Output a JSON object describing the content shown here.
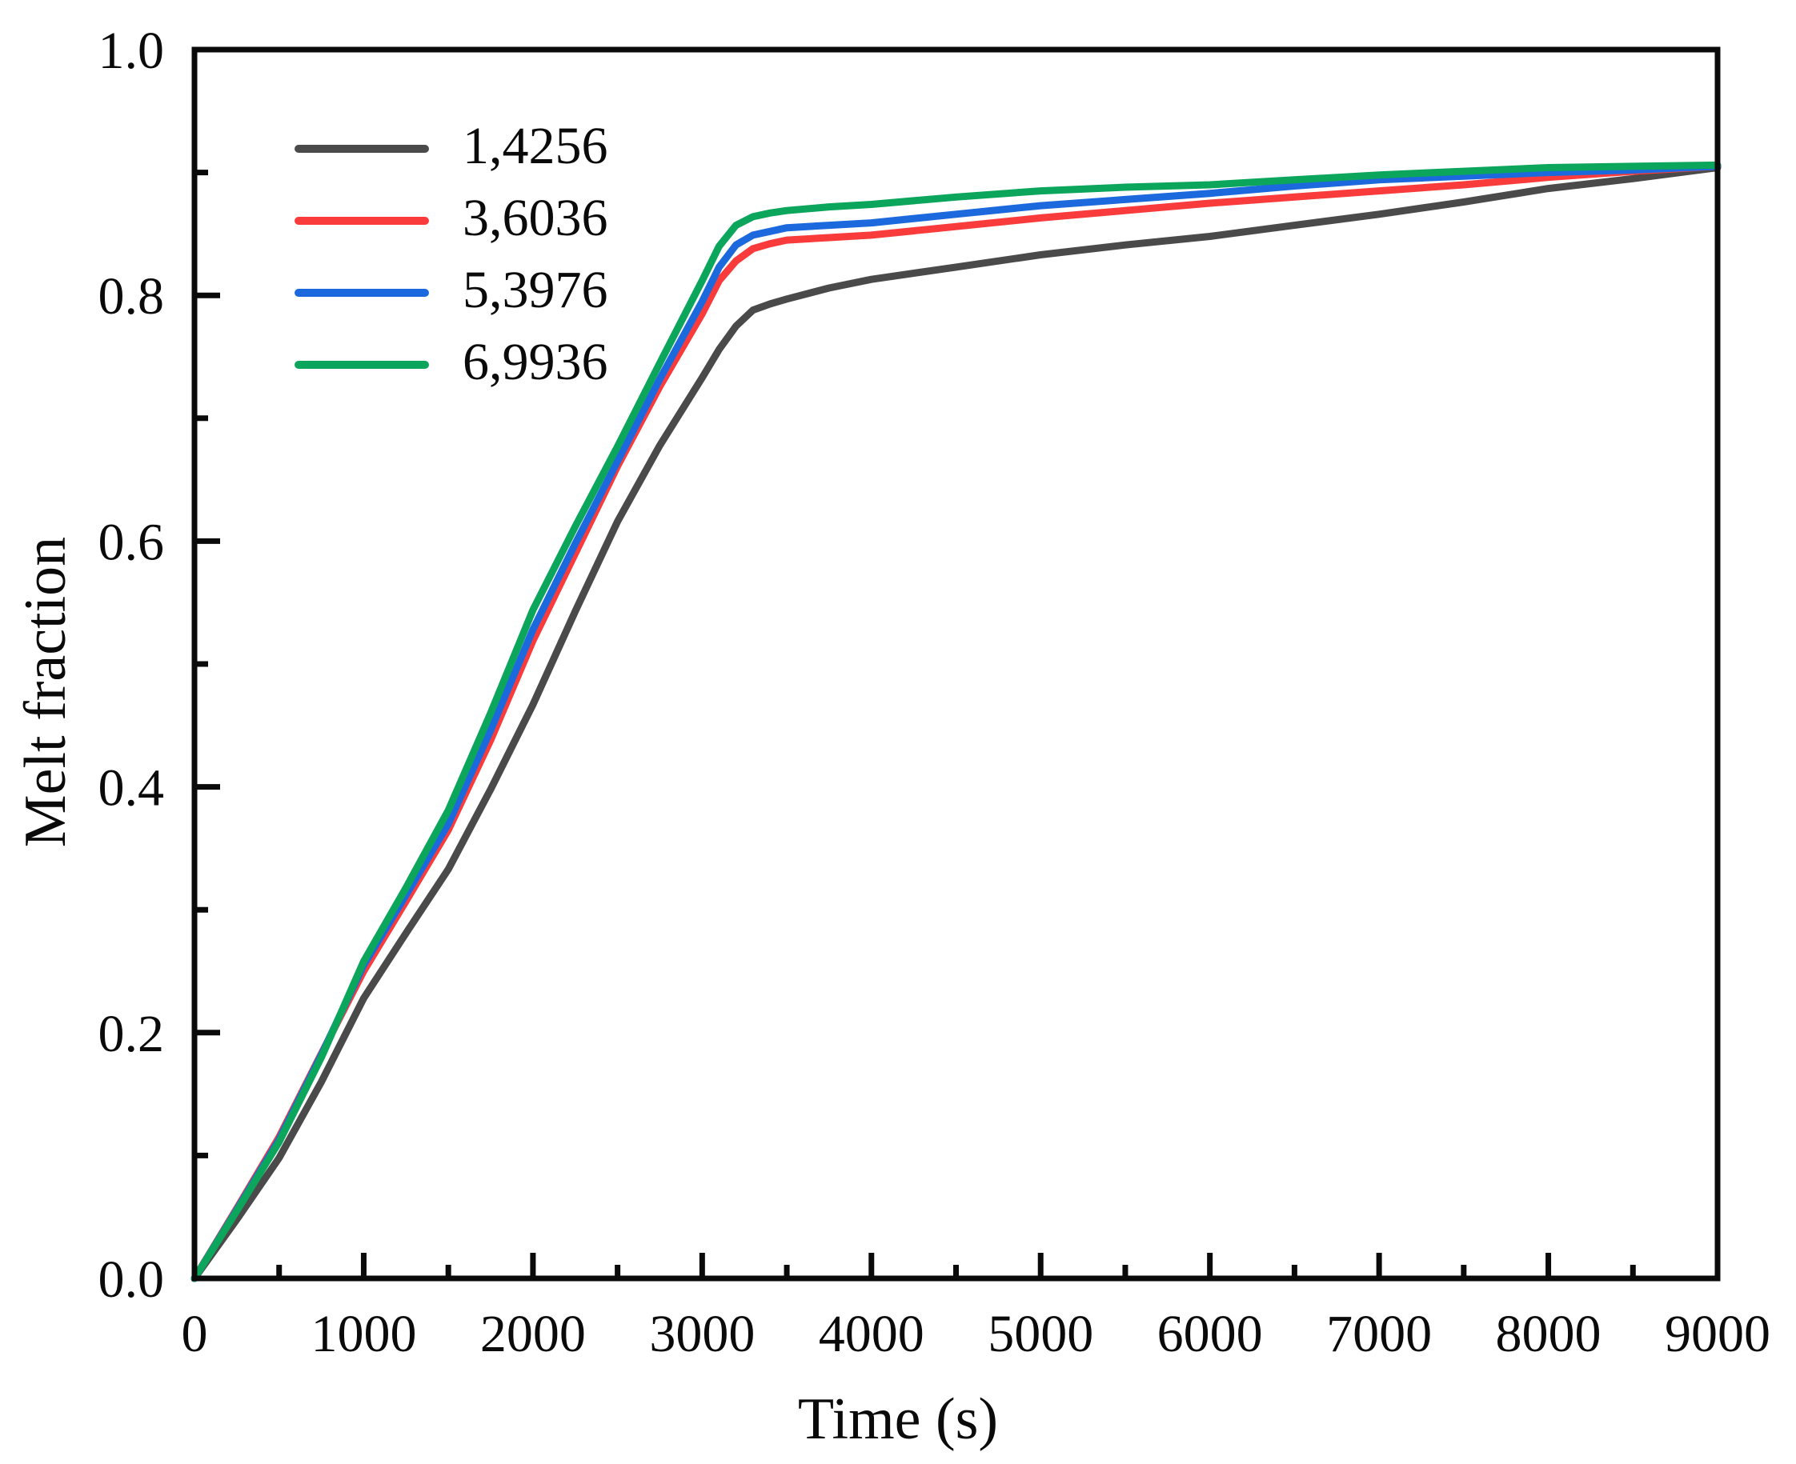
{
  "figure": {
    "background": "#ffffff",
    "frame_color": "#0a0a0a",
    "text_color": "#0a0a0a"
  },
  "chart_data": {
    "type": "line",
    "title": "",
    "xlabel": "Time (s)",
    "ylabel": "Melt fraction",
    "xlim": [
      0,
      9000
    ],
    "ylim": [
      0.0,
      1.0
    ],
    "x_major_step": 1000,
    "x_minor_step": 500,
    "y_major_step": 0.2,
    "y_minor_step": 0.1,
    "x_tick_labels": [
      "0",
      "1000",
      "2000",
      "3000",
      "4000",
      "5000",
      "6000",
      "7000",
      "8000",
      "9000"
    ],
    "y_tick_labels": [
      "0.0",
      "0.2",
      "0.4",
      "0.6",
      "0.8",
      "1.0"
    ],
    "grid": false,
    "legend_position": "upper-left-inside",
    "x": [
      0,
      250,
      500,
      750,
      1000,
      1250,
      1500,
      1750,
      2000,
      2250,
      2500,
      2750,
      3000,
      3100,
      3200,
      3300,
      3400,
      3500,
      3750,
      4000,
      4500,
      5000,
      5500,
      6000,
      6500,
      7000,
      7500,
      8000,
      8500,
      9000
    ],
    "series": [
      {
        "name": "1,4256",
        "color": "#4a4a4a",
        "values": [
          0,
          0.048,
          0.098,
          0.16,
          0.228,
          0.281,
          0.333,
          0.398,
          0.467,
          0.543,
          0.616,
          0.678,
          0.733,
          0.756,
          0.775,
          0.788,
          0.793,
          0.797,
          0.806,
          0.813,
          0.823,
          0.833,
          0.841,
          0.848,
          0.857,
          0.866,
          0.876,
          0.887,
          0.895,
          0.904
        ]
      },
      {
        "name": "3,6036",
        "color": "#f93b3c",
        "values": [
          0,
          0.057,
          0.115,
          0.183,
          0.25,
          0.307,
          0.365,
          0.438,
          0.519,
          0.59,
          0.661,
          0.726,
          0.785,
          0.812,
          0.828,
          0.838,
          0.842,
          0.845,
          0.847,
          0.849,
          0.856,
          0.863,
          0.869,
          0.875,
          0.88,
          0.885,
          0.89,
          0.896,
          0.901,
          0.905
        ]
      },
      {
        "name": "5,3976",
        "color": "#1c69de",
        "values": [
          0,
          0.056,
          0.113,
          0.182,
          0.255,
          0.312,
          0.37,
          0.446,
          0.528,
          0.598,
          0.665,
          0.732,
          0.795,
          0.823,
          0.841,
          0.849,
          0.852,
          0.855,
          0.857,
          0.859,
          0.866,
          0.873,
          0.878,
          0.883,
          0.889,
          0.894,
          0.897,
          0.9,
          0.902,
          0.905
        ]
      },
      {
        "name": "6,9936",
        "color": "#0ca55c",
        "values": [
          0,
          0.055,
          0.111,
          0.18,
          0.258,
          0.318,
          0.381,
          0.46,
          0.544,
          0.612,
          0.677,
          0.745,
          0.812,
          0.84,
          0.857,
          0.864,
          0.867,
          0.869,
          0.872,
          0.874,
          0.88,
          0.885,
          0.888,
          0.89,
          0.894,
          0.898,
          0.901,
          0.904,
          0.905,
          0.906
        ]
      }
    ]
  }
}
